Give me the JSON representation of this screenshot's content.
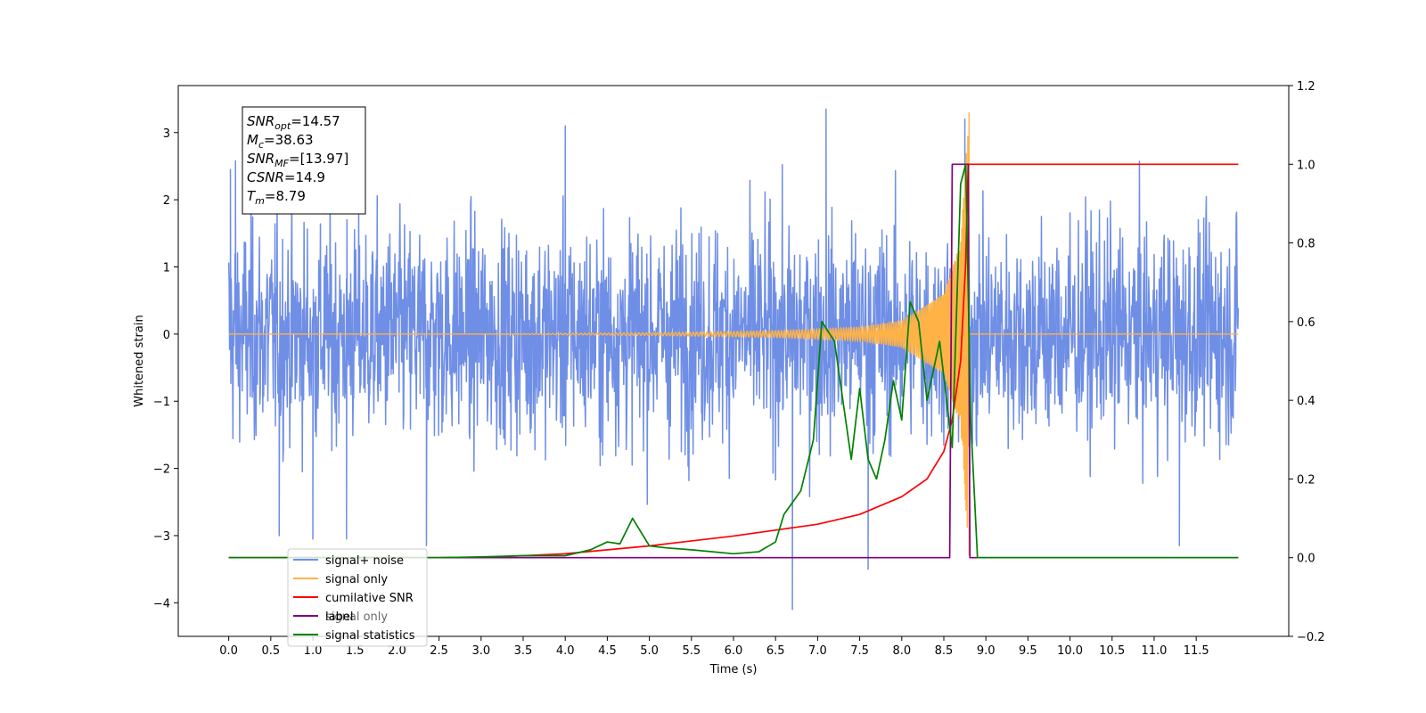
{
  "chart_data": {
    "type": "line",
    "xlabel": "Time (s)",
    "ylabel": "Whitened strain",
    "xlim": [
      -0.6,
      12.6
    ],
    "ylim_left": [
      -4.5,
      3.7
    ],
    "ylim_right": [
      -0.2,
      1.2
    ],
    "x_ticks": [
      0.0,
      0.5,
      1.0,
      1.5,
      2.0,
      2.5,
      3.0,
      3.5,
      4.0,
      4.5,
      5.0,
      5.5,
      6.0,
      6.5,
      7.0,
      7.5,
      8.0,
      8.5,
      9.0,
      9.5,
      10.0,
      10.5,
      11.0,
      11.5
    ],
    "x_tick_labels": [
      "0.0",
      "0.5",
      "1.0",
      "1.5",
      "2.0",
      "2.5",
      "3.0",
      "3.5",
      "4.0",
      "4.5",
      "5.0",
      "5.5",
      "6.0",
      "6.5",
      "7.0",
      "7.5",
      "8.0",
      "8.5",
      "9.0",
      "9.5",
      "10.0",
      "10.5",
      "11.0",
      "11.5"
    ],
    "y_left_ticks": [
      3,
      2,
      1,
      0,
      -1,
      -2,
      -3,
      -4
    ],
    "y_left_tick_labels": [
      "3",
      "2",
      "1",
      "0",
      "−1",
      "−2",
      "−3",
      "−4"
    ],
    "y_right_ticks": [
      1.2,
      1.0,
      0.8,
      0.6,
      0.4,
      0.2,
      0.0,
      -0.2
    ],
    "y_right_tick_labels": [
      "1.2",
      "1.0",
      "0.8",
      "0.6",
      "0.4",
      "0.2",
      "0.0",
      "−0.2"
    ],
    "grid": false,
    "legend_position": "lower-left",
    "series": [
      {
        "name": "signal+ noise",
        "axis": "left",
        "color": "#6f8ee6",
        "x_range": [
          0.0,
          12.0
        ],
        "approx_std": 0.8,
        "approx_envelope": [
          -2.2,
          2.2
        ],
        "notable_extremes": [
          {
            "x": 0.02,
            "y": 2.45
          },
          {
            "x": 0.08,
            "y": 2.58
          },
          {
            "x": 0.6,
            "y": -3.0
          },
          {
            "x": 1.0,
            "y": -3.05
          },
          {
            "x": 1.4,
            "y": -3.05
          },
          {
            "x": 2.35,
            "y": -3.15
          },
          {
            "x": 4.0,
            "y": 3.1
          },
          {
            "x": 6.7,
            "y": -4.1
          },
          {
            "x": 7.1,
            "y": 3.35
          },
          {
            "x": 7.6,
            "y": -3.5
          },
          {
            "x": 8.75,
            "y": 3.2
          },
          {
            "x": 11.3,
            "y": -3.15
          }
        ]
      },
      {
        "name": "signal only",
        "axis": "left",
        "color": "#ffb347",
        "description": "chirp waveform growing toward merger, zero outside",
        "points": [
          [
            0.0,
            0.0
          ],
          [
            3.0,
            0.0
          ],
          [
            5.0,
            0.02
          ],
          [
            6.5,
            0.05
          ],
          [
            7.5,
            0.1
          ],
          [
            8.0,
            0.2
          ],
          [
            8.5,
            0.6
          ],
          [
            8.7,
            1.4
          ],
          [
            8.78,
            2.95
          ],
          [
            8.8,
            -3.3
          ],
          [
            8.82,
            0.0
          ],
          [
            12.0,
            0.0
          ]
        ]
      },
      {
        "name": "cumilative SNR",
        "axis": "right",
        "color": "#ff0000",
        "points": [
          [
            0.0,
            0.0
          ],
          [
            3.0,
            0.0
          ],
          [
            4.0,
            0.01
          ],
          [
            5.0,
            0.03
          ],
          [
            6.0,
            0.055
          ],
          [
            6.5,
            0.07
          ],
          [
            7.0,
            0.085
          ],
          [
            7.5,
            0.11
          ],
          [
            8.0,
            0.155
          ],
          [
            8.3,
            0.2
          ],
          [
            8.5,
            0.27
          ],
          [
            8.6,
            0.35
          ],
          [
            8.7,
            0.5
          ],
          [
            8.76,
            0.75
          ],
          [
            8.79,
            1.0
          ],
          [
            12.0,
            1.0
          ]
        ]
      },
      {
        "name": "label",
        "axis": "right",
        "color": "#800080",
        "points": [
          [
            0.0,
            0.0
          ],
          [
            8.57,
            0.0
          ],
          [
            8.6,
            1.0
          ],
          [
            8.79,
            1.0
          ],
          [
            8.81,
            0.0
          ],
          [
            12.0,
            0.0
          ]
        ]
      },
      {
        "name": "signal statistics",
        "axis": "right",
        "color": "#008000",
        "points": [
          [
            0.0,
            0.0
          ],
          [
            2.5,
            0.0
          ],
          [
            3.0,
            0.002
          ],
          [
            3.5,
            0.005
          ],
          [
            4.0,
            0.005
          ],
          [
            4.3,
            0.02
          ],
          [
            4.5,
            0.04
          ],
          [
            4.65,
            0.035
          ],
          [
            4.8,
            0.1
          ],
          [
            5.0,
            0.03
          ],
          [
            5.2,
            0.025
          ],
          [
            5.5,
            0.02
          ],
          [
            6.0,
            0.01
          ],
          [
            6.3,
            0.015
          ],
          [
            6.5,
            0.04
          ],
          [
            6.6,
            0.11
          ],
          [
            6.8,
            0.17
          ],
          [
            6.95,
            0.3
          ],
          [
            7.05,
            0.6
          ],
          [
            7.2,
            0.55
          ],
          [
            7.4,
            0.25
          ],
          [
            7.5,
            0.43
          ],
          [
            7.6,
            0.25
          ],
          [
            7.7,
            0.2
          ],
          [
            7.8,
            0.3
          ],
          [
            7.9,
            0.45
          ],
          [
            8.0,
            0.35
          ],
          [
            8.1,
            0.65
          ],
          [
            8.2,
            0.6
          ],
          [
            8.3,
            0.4
          ],
          [
            8.45,
            0.55
          ],
          [
            8.6,
            0.28
          ],
          [
            8.7,
            0.95
          ],
          [
            8.76,
            1.0
          ],
          [
            8.82,
            0.35
          ],
          [
            8.9,
            0.0
          ],
          [
            12.0,
            0.0
          ]
        ]
      }
    ],
    "annotations": [
      {
        "kind": "stat",
        "base": "SNR",
        "sub": "opt",
        "value": "=14.57"
      },
      {
        "kind": "stat",
        "base": "M",
        "sub": "c",
        "value": "=38.63"
      },
      {
        "kind": "stat",
        "base": "SNR",
        "sub": "MF",
        "value": "=[13.97]"
      },
      {
        "kind": "stat",
        "base": "CSNR",
        "sub": "",
        "value": "=14.9"
      },
      {
        "kind": "stat",
        "base": "T",
        "sub": "m",
        "value": "=8.79"
      }
    ],
    "legend_hidden_text": "signal only"
  }
}
